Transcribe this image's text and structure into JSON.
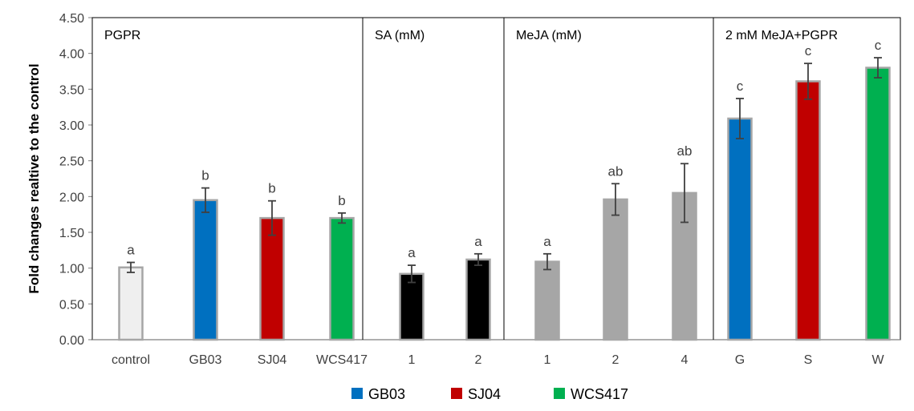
{
  "chart_data": {
    "type": "bar",
    "ylabel": "Fold changes realtive to the control",
    "ylim": [
      0,
      4.5
    ],
    "yticks": [
      "0.00",
      "0.50",
      "1.00",
      "1.50",
      "2.00",
      "2.50",
      "3.00",
      "3.50",
      "4.00",
      "4.50"
    ],
    "groups": [
      {
        "label": "PGPR",
        "start": 0,
        "end": 3
      },
      {
        "label": "SA (mM)",
        "start": 4,
        "end": 5
      },
      {
        "label": "MeJA (mM)",
        "start": 6,
        "end": 8
      },
      {
        "label": "2 mM MeJA+PGPR",
        "start": 9,
        "end": 11
      }
    ],
    "categories": [
      "control",
      "GB03",
      "SJ04",
      "WCS417",
      "1",
      "2",
      "1",
      "2",
      "4",
      "G",
      "S",
      "W"
    ],
    "values": [
      1.01,
      1.95,
      1.7,
      1.7,
      0.92,
      1.12,
      1.09,
      1.96,
      2.05,
      3.09,
      3.61,
      3.8
    ],
    "errors": [
      0.07,
      0.17,
      0.24,
      0.07,
      0.12,
      0.08,
      0.11,
      0.22,
      0.41,
      0.28,
      0.25,
      0.14
    ],
    "significance": [
      "a",
      "b",
      "b",
      "b",
      "a",
      "a",
      "a",
      "ab",
      "ab",
      "c",
      "c",
      "c"
    ],
    "bar_colors": [
      "#efefef",
      "#0070c0",
      "#c00000",
      "#00b050",
      "#000000",
      "#000000",
      "#a6a6a6",
      "#a6a6a6",
      "#a6a6a6",
      "#0070c0",
      "#c00000",
      "#00b050"
    ],
    "legend": [
      {
        "name": "GB03",
        "color": "#0070c0"
      },
      {
        "name": "SJ04",
        "color": "#c00000"
      },
      {
        "name": "WCS417",
        "color": "#00b050"
      }
    ],
    "legend_position": "bottom"
  }
}
